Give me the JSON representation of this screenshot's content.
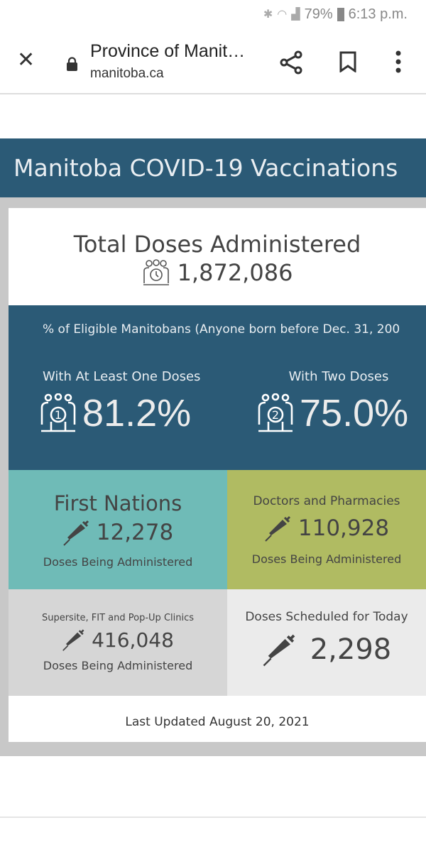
{
  "status_bar": {
    "battery": "79%",
    "time": "6:13 p.m.",
    "icons": [
      "bluetooth-icon",
      "wifi-icon",
      "signal-icon",
      "battery-icon"
    ]
  },
  "browser": {
    "title": "Province of Manit…",
    "url": "manitoba.ca"
  },
  "header": {
    "title": "Manitoba COVID-19 Vaccinations"
  },
  "total": {
    "title": "Total Doses Administered",
    "value": "1,872,086"
  },
  "eligible": {
    "caption": "% of Eligible Manitobans (Anyone born before Dec. 31, 200",
    "one_label": "With At Least One Doses",
    "one_value": "81.2%",
    "two_label": "With Two Doses",
    "two_value": "75.0%"
  },
  "cells": [
    {
      "title": "First Nations",
      "value": "12,278",
      "sub": "Doses Being Administered",
      "color": "#6fbbb7"
    },
    {
      "title": "Doctors and Pharmacies",
      "value": "110,928",
      "sub": "Doses Being Administered",
      "color": "#b0bb62"
    },
    {
      "title": "Supersite, FIT and Pop-Up Clinics",
      "value": "416,048",
      "sub": "Doses Being Administered",
      "color": "#d6d6d6"
    },
    {
      "title": "Doses Scheduled for Today",
      "value": "2,298",
      "color": "#ebebeb"
    }
  ],
  "footer": {
    "updated": "Last Updated August 20, 2021"
  },
  "colors": {
    "header": "#2b5a76",
    "frame": "#c8c8c8"
  }
}
